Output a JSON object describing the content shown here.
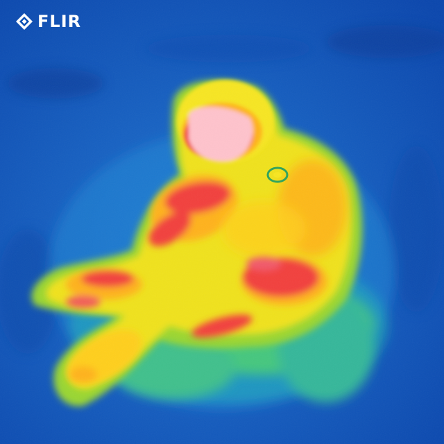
{
  "overlay": {
    "logo_text": "FLIR",
    "logo_icon": "flir-diamond-icon"
  },
  "palette": {
    "background_cold": "#0a4fb4",
    "background_mid": "#1e74d2",
    "cool": "#1f9ad8",
    "teal": "#23c3a0",
    "green": "#7fd23a",
    "yellow": "#f2e51d",
    "orange": "#ffb21a",
    "hot": "#f2413d",
    "hottest": "#ffd1d6"
  }
}
